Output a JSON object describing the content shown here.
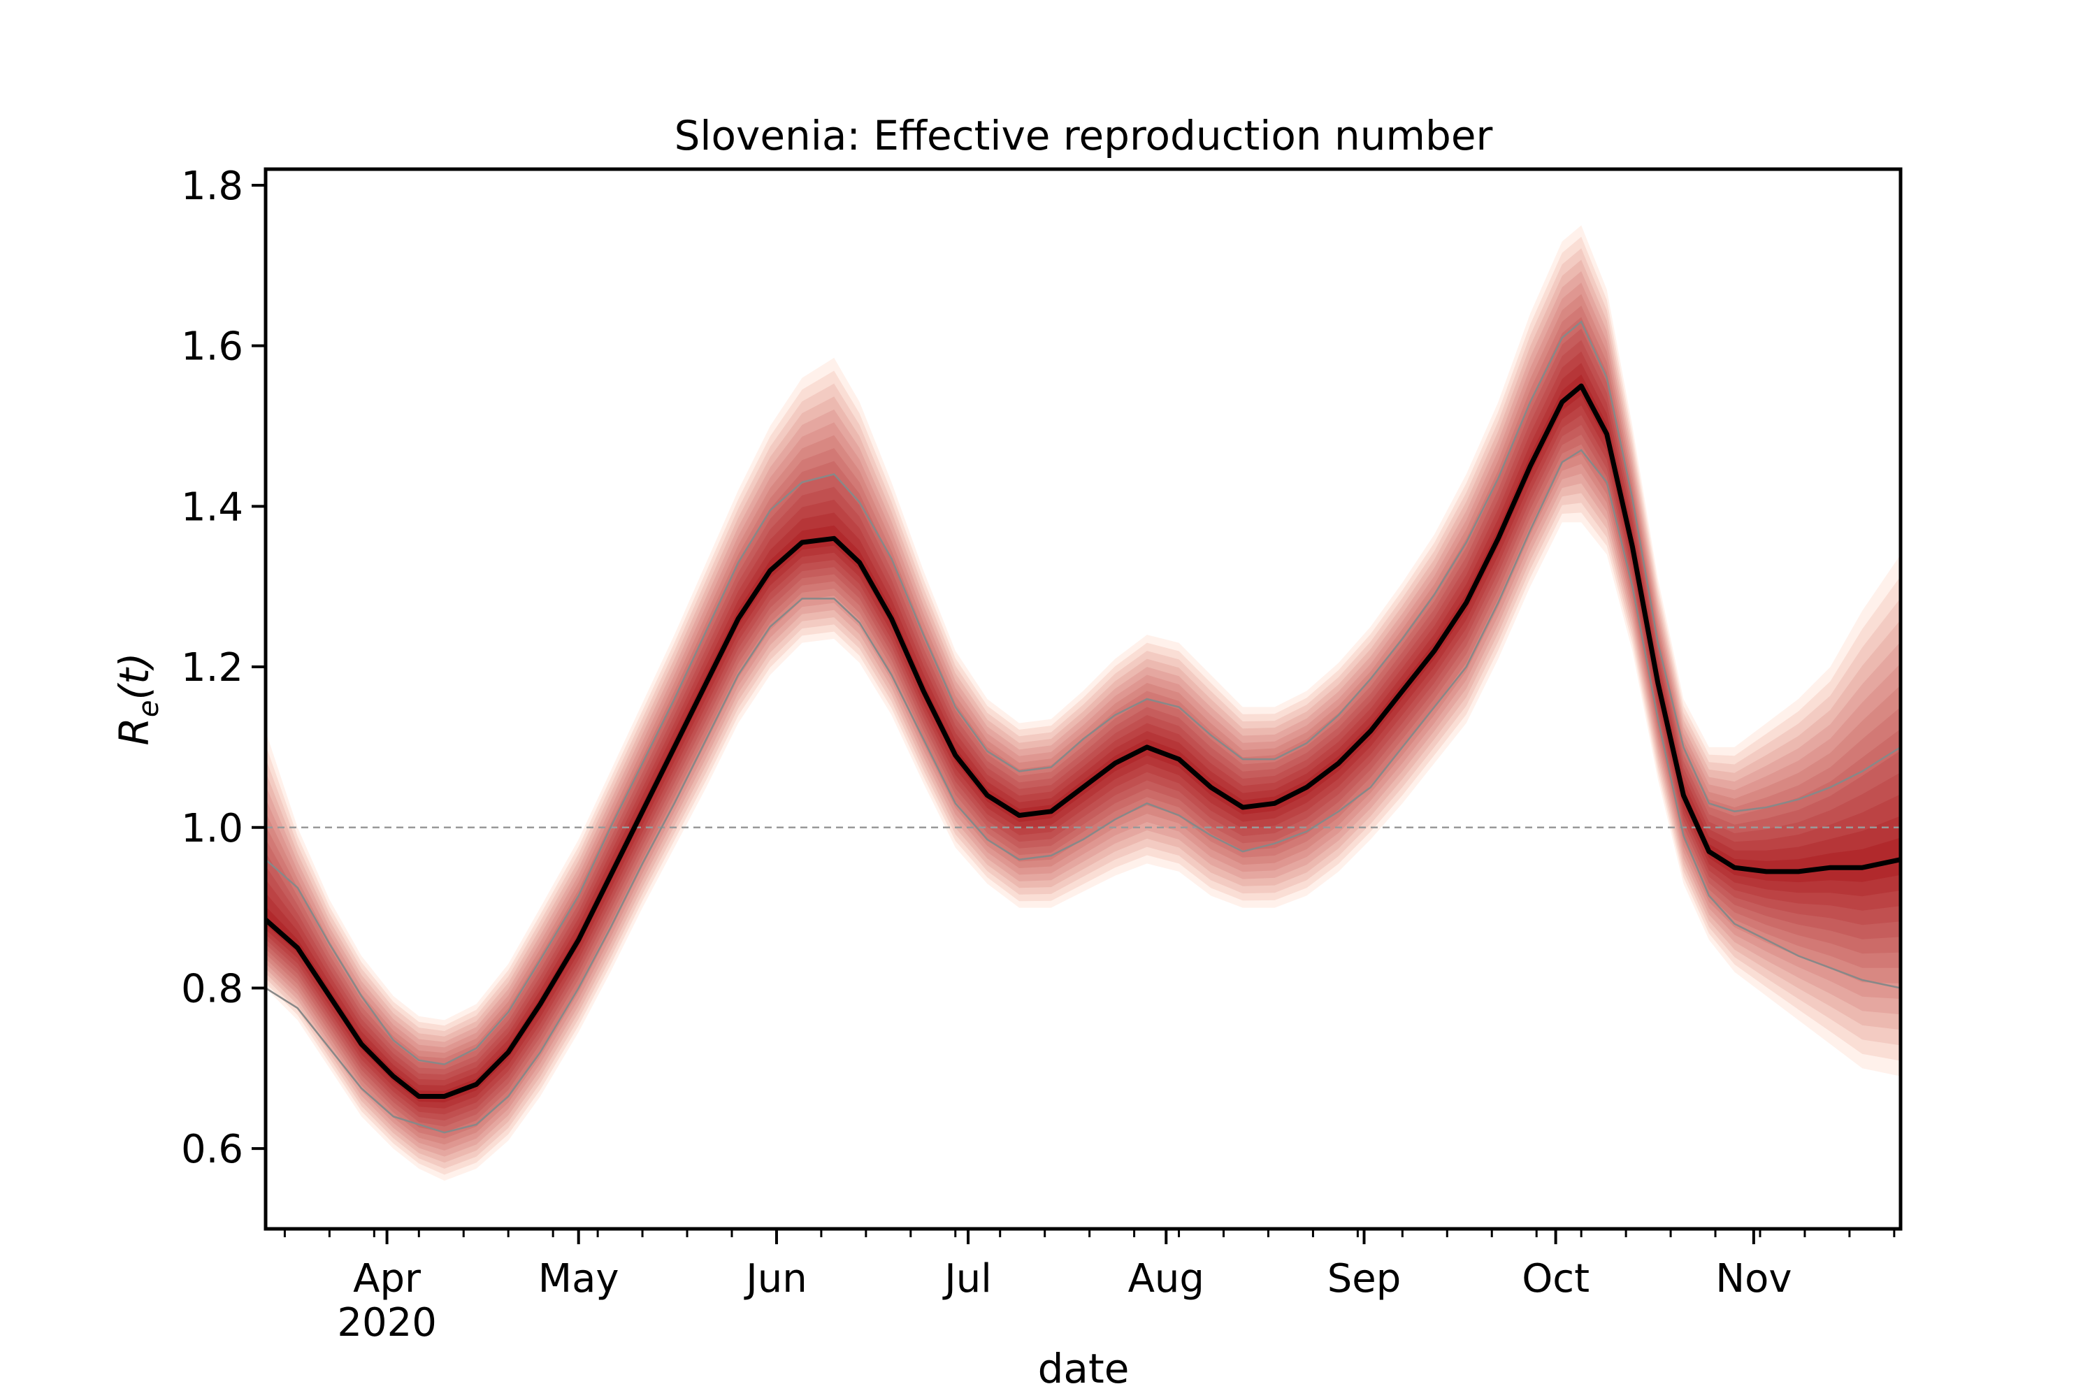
{
  "chart_data": {
    "type": "line",
    "title": "Slovenia: Effective reproduction number",
    "xlabel": "date",
    "ylabel_base": "R",
    "ylabel_sub": "e",
    "ylabel_arg": "(t)",
    "xlim": [
      "2020-03-13",
      "2020-11-24"
    ],
    "ylim": [
      0.5,
      1.82
    ],
    "yticks": [
      "0.6",
      "0.8",
      "1.0",
      "1.2",
      "1.4",
      "1.6",
      "1.8"
    ],
    "xticks": [
      {
        "date": "2020-04-01",
        "label": "Apr",
        "sublabel": "2020"
      },
      {
        "date": "2020-05-01",
        "label": "May",
        "sublabel": ""
      },
      {
        "date": "2020-06-01",
        "label": "Jun",
        "sublabel": ""
      },
      {
        "date": "2020-07-01",
        "label": "Jul",
        "sublabel": ""
      },
      {
        "date": "2020-08-01",
        "label": "Aug",
        "sublabel": ""
      },
      {
        "date": "2020-09-01",
        "label": "Sep",
        "sublabel": ""
      },
      {
        "date": "2020-10-01",
        "label": "Oct",
        "sublabel": ""
      },
      {
        "date": "2020-11-01",
        "label": "Nov",
        "sublabel": ""
      }
    ],
    "reference_line": 1.0,
    "grid": false,
    "colors": {
      "median": "#000000",
      "interval": "#888888",
      "fan_dark": "#a50f15",
      "fan_light": "#fee0d2",
      "reference": "#999999"
    },
    "series": [
      {
        "x": [
          "2020-03-13",
          "2020-03-18",
          "2020-03-23",
          "2020-03-28",
          "2020-04-02",
          "2020-04-06",
          "2020-04-10",
          "2020-04-15",
          "2020-04-20",
          "2020-04-25",
          "2020-05-01",
          "2020-05-06",
          "2020-05-11",
          "2020-05-16",
          "2020-05-21",
          "2020-05-26",
          "2020-05-31",
          "2020-06-05",
          "2020-06-10",
          "2020-06-14",
          "2020-06-19",
          "2020-06-24",
          "2020-06-29",
          "2020-07-04",
          "2020-07-09",
          "2020-07-14",
          "2020-07-19",
          "2020-07-24",
          "2020-07-29",
          "2020-08-03",
          "2020-08-08",
          "2020-08-13",
          "2020-08-18",
          "2020-08-23",
          "2020-08-28",
          "2020-09-02",
          "2020-09-07",
          "2020-09-12",
          "2020-09-17",
          "2020-09-22",
          "2020-09-27",
          "2020-10-02",
          "2020-10-05",
          "2020-10-09",
          "2020-10-13",
          "2020-10-17",
          "2020-10-21",
          "2020-10-25",
          "2020-10-29",
          "2020-11-03",
          "2020-11-08",
          "2020-11-13",
          "2020-11-18",
          "2020-11-24"
        ],
        "median": [
          0.885,
          0.85,
          0.79,
          0.73,
          0.69,
          0.665,
          0.665,
          0.68,
          0.72,
          0.78,
          0.86,
          0.94,
          1.02,
          1.1,
          1.18,
          1.26,
          1.32,
          1.355,
          1.36,
          1.33,
          1.26,
          1.17,
          1.09,
          1.04,
          1.015,
          1.02,
          1.05,
          1.08,
          1.1,
          1.085,
          1.05,
          1.025,
          1.03,
          1.05,
          1.08,
          1.12,
          1.17,
          1.22,
          1.28,
          1.36,
          1.45,
          1.53,
          1.55,
          1.49,
          1.35,
          1.18,
          1.04,
          0.97,
          0.95,
          0.945,
          0.945,
          0.95,
          0.95,
          0.96
        ],
        "lower": [
          0.8,
          0.775,
          0.725,
          0.675,
          0.64,
          0.63,
          0.62,
          0.63,
          0.665,
          0.72,
          0.8,
          0.875,
          0.955,
          1.03,
          1.11,
          1.19,
          1.25,
          1.285,
          1.285,
          1.255,
          1.19,
          1.11,
          1.03,
          0.985,
          0.96,
          0.965,
          0.985,
          1.01,
          1.03,
          1.015,
          0.99,
          0.97,
          0.98,
          0.995,
          1.02,
          1.05,
          1.1,
          1.15,
          1.2,
          1.28,
          1.37,
          1.455,
          1.47,
          1.43,
          1.3,
          1.135,
          0.99,
          0.915,
          0.88,
          0.86,
          0.84,
          0.825,
          0.81,
          0.8
        ],
        "upper": [
          0.96,
          0.925,
          0.855,
          0.79,
          0.735,
          0.71,
          0.705,
          0.725,
          0.77,
          0.835,
          0.915,
          1.0,
          1.08,
          1.16,
          1.245,
          1.33,
          1.395,
          1.43,
          1.44,
          1.405,
          1.335,
          1.24,
          1.15,
          1.095,
          1.07,
          1.075,
          1.11,
          1.14,
          1.16,
          1.15,
          1.115,
          1.085,
          1.085,
          1.105,
          1.14,
          1.185,
          1.235,
          1.29,
          1.355,
          1.435,
          1.53,
          1.61,
          1.63,
          1.56,
          1.41,
          1.23,
          1.1,
          1.03,
          1.02,
          1.025,
          1.035,
          1.05,
          1.07,
          1.1
        ],
        "outer_lower": [
          0.8,
          0.76,
          0.7,
          0.64,
          0.6,
          0.575,
          0.56,
          0.575,
          0.61,
          0.665,
          0.745,
          0.82,
          0.9,
          0.975,
          1.05,
          1.13,
          1.19,
          1.23,
          1.235,
          1.205,
          1.14,
          1.055,
          0.975,
          0.93,
          0.9,
          0.9,
          0.92,
          0.94,
          0.955,
          0.945,
          0.915,
          0.9,
          0.9,
          0.915,
          0.945,
          0.985,
          1.03,
          1.08,
          1.13,
          1.21,
          1.3,
          1.38,
          1.38,
          1.34,
          1.22,
          1.06,
          0.93,
          0.86,
          0.82,
          0.79,
          0.76,
          0.73,
          0.7,
          0.69
        ],
        "outer_upper": [
          1.12,
          1.0,
          0.91,
          0.84,
          0.79,
          0.765,
          0.76,
          0.78,
          0.83,
          0.9,
          0.985,
          1.07,
          1.155,
          1.24,
          1.33,
          1.42,
          1.5,
          1.56,
          1.585,
          1.53,
          1.43,
          1.32,
          1.22,
          1.16,
          1.13,
          1.135,
          1.17,
          1.21,
          1.24,
          1.23,
          1.19,
          1.15,
          1.15,
          1.17,
          1.205,
          1.25,
          1.305,
          1.365,
          1.44,
          1.53,
          1.64,
          1.73,
          1.75,
          1.67,
          1.5,
          1.31,
          1.16,
          1.1,
          1.1,
          1.13,
          1.16,
          1.2,
          1.27,
          1.34
        ]
      }
    ]
  }
}
